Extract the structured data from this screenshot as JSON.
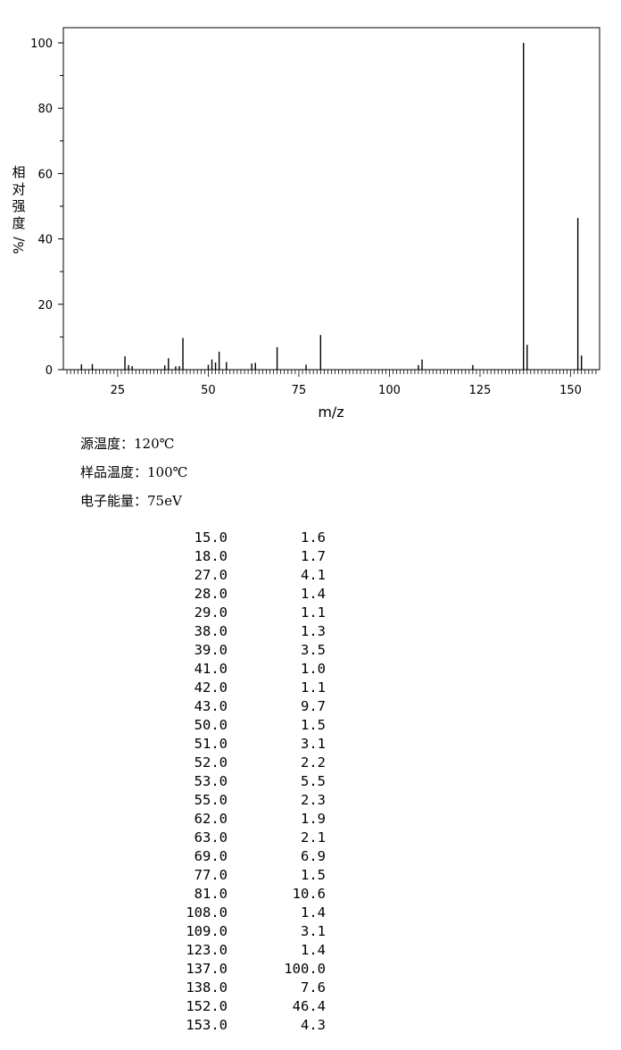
{
  "chart_data": {
    "type": "bar",
    "xlabel": "m/z",
    "ylabel": "相对强度/%",
    "xlim": [
      10,
      158
    ],
    "ylim": [
      0,
      100
    ],
    "xticks": [
      25,
      50,
      75,
      100,
      125,
      150
    ],
    "yticks": [
      0,
      20,
      40,
      60,
      80,
      100
    ],
    "grid": false,
    "peaks": [
      {
        "mz": 15,
        "abundance": 1.6
      },
      {
        "mz": 18,
        "abundance": 1.7
      },
      {
        "mz": 27,
        "abundance": 4.1
      },
      {
        "mz": 28,
        "abundance": 1.4
      },
      {
        "mz": 29,
        "abundance": 1.1
      },
      {
        "mz": 38,
        "abundance": 1.3
      },
      {
        "mz": 39,
        "abundance": 3.5
      },
      {
        "mz": 41,
        "abundance": 1.0
      },
      {
        "mz": 42,
        "abundance": 1.1
      },
      {
        "mz": 43,
        "abundance": 9.7
      },
      {
        "mz": 50,
        "abundance": 1.5
      },
      {
        "mz": 51,
        "abundance": 3.1
      },
      {
        "mz": 52,
        "abundance": 2.2
      },
      {
        "mz": 53,
        "abundance": 5.5
      },
      {
        "mz": 55,
        "abundance": 2.3
      },
      {
        "mz": 62,
        "abundance": 1.9
      },
      {
        "mz": 63,
        "abundance": 2.1
      },
      {
        "mz": 69,
        "abundance": 6.9
      },
      {
        "mz": 77,
        "abundance": 1.5
      },
      {
        "mz": 81,
        "abundance": 10.6
      },
      {
        "mz": 108,
        "abundance": 1.4
      },
      {
        "mz": 109,
        "abundance": 3.1
      },
      {
        "mz": 123,
        "abundance": 1.4
      },
      {
        "mz": 137,
        "abundance": 100.0
      },
      {
        "mz": 138,
        "abundance": 7.6
      },
      {
        "mz": 152,
        "abundance": 46.4
      },
      {
        "mz": 153,
        "abundance": 4.3
      }
    ]
  },
  "info": {
    "source_temp": "源温度：120℃",
    "sample_temp": "样品温度：100℃",
    "electron_energy": "电子能量：75eV"
  },
  "table": {
    "rows": [
      [
        "15.0",
        "1.6"
      ],
      [
        "18.0",
        "1.7"
      ],
      [
        "27.0",
        "4.1"
      ],
      [
        "28.0",
        "1.4"
      ],
      [
        "29.0",
        "1.1"
      ],
      [
        "38.0",
        "1.3"
      ],
      [
        "39.0",
        "3.5"
      ],
      [
        "41.0",
        "1.0"
      ],
      [
        "42.0",
        "1.1"
      ],
      [
        "43.0",
        "9.7"
      ],
      [
        "50.0",
        "1.5"
      ],
      [
        "51.0",
        "3.1"
      ],
      [
        "52.0",
        "2.2"
      ],
      [
        "53.0",
        "5.5"
      ],
      [
        "55.0",
        "2.3"
      ],
      [
        "62.0",
        "1.9"
      ],
      [
        "63.0",
        "2.1"
      ],
      [
        "69.0",
        "6.9"
      ],
      [
        "77.0",
        "1.5"
      ],
      [
        "81.0",
        "10.6"
      ],
      [
        "108.0",
        "1.4"
      ],
      [
        "109.0",
        "3.1"
      ],
      [
        "123.0",
        "1.4"
      ],
      [
        "137.0",
        "100.0"
      ],
      [
        "138.0",
        "7.6"
      ],
      [
        "152.0",
        "46.4"
      ],
      [
        "153.0",
        "4.3"
      ]
    ]
  }
}
